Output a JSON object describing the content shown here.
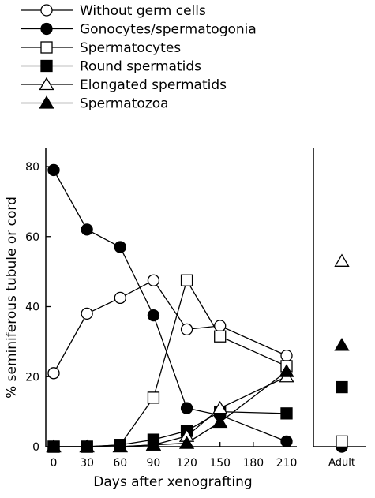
{
  "chart_data": {
    "type": "line",
    "xlabel": "Days after xenografting",
    "ylabel": "% seminiferous tubule or cord",
    "x_ticks": [
      "0",
      "30",
      "60",
      "90",
      "120",
      "150",
      "180",
      "210"
    ],
    "y_ticks": [
      "0",
      "20",
      "40",
      "60",
      "80"
    ],
    "xlim": [
      0,
      210
    ],
    "ylim": [
      0,
      80
    ],
    "adult_label": "Adult",
    "legend_position": "top-left",
    "series": [
      {
        "name": "Without germ cells",
        "marker": "circle-open",
        "x": [
          0,
          30,
          60,
          90,
          120,
          150,
          210
        ],
        "values": [
          21,
          38,
          42.5,
          47.5,
          33.5,
          34.5,
          26
        ]
      },
      {
        "name": "Gonocytes/spermatogonia",
        "marker": "circle-filled",
        "x": [
          0,
          30,
          60,
          90,
          120,
          150,
          210
        ],
        "values": [
          79,
          62,
          57,
          37.5,
          11,
          9,
          1.5
        ]
      },
      {
        "name": "Spermatocytes",
        "marker": "square-open",
        "x": [
          0,
          30,
          60,
          90,
          120,
          150,
          210
        ],
        "values": [
          0,
          0,
          0.5,
          14,
          47.5,
          31.5,
          23
        ]
      },
      {
        "name": "Round spermatids",
        "marker": "square-filled",
        "x": [
          0,
          30,
          60,
          90,
          120,
          150,
          210
        ],
        "values": [
          0,
          0,
          0.5,
          2,
          4.5,
          10,
          9.5
        ]
      },
      {
        "name": "Elongated spermatids",
        "marker": "triangle-open",
        "x": [
          0,
          30,
          60,
          90,
          120,
          150,
          210
        ],
        "values": [
          0,
          0,
          0,
          0.5,
          3,
          11,
          20
        ]
      },
      {
        "name": "Spermatozoa",
        "marker": "triangle-filled",
        "x": [
          0,
          30,
          60,
          90,
          120,
          150,
          210
        ],
        "values": [
          0,
          0,
          0,
          0.5,
          1,
          7,
          21.5
        ]
      }
    ],
    "adult": [
      {
        "series": "Without germ cells",
        "value": 0
      },
      {
        "series": "Gonocytes/spermatogonia",
        "value": 0
      },
      {
        "series": "Spermatocytes",
        "value": 1.5
      },
      {
        "series": "Round spermatids",
        "value": 17
      },
      {
        "series": "Elongated spermatids",
        "value": 53
      },
      {
        "series": "Spermatozoa",
        "value": 29
      }
    ]
  }
}
